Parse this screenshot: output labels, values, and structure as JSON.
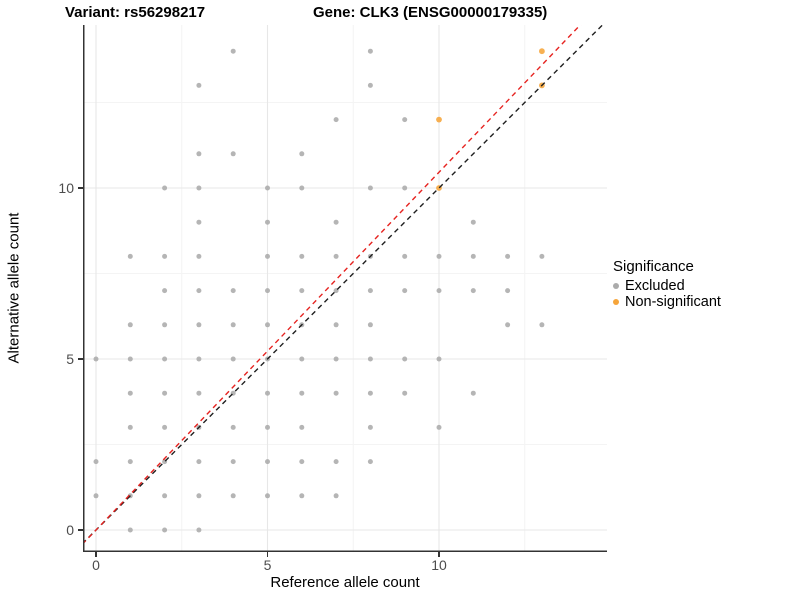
{
  "header": {
    "variant_title": "Variant: rs56298217",
    "gene_title": "Gene: CLK3 (ENSG00000179335)"
  },
  "legend": {
    "title": "Significance",
    "items": [
      {
        "label": "Excluded",
        "color": "#ABABAB"
      },
      {
        "label": "Non-significant",
        "color": "#F6A53A"
      }
    ]
  },
  "chart_data": {
    "type": "scatter",
    "title_left": "Variant: rs56298217",
    "title_right": "Gene: CLK3 (ENSG00000179335)",
    "xlabel": "Reference allele count",
    "ylabel": "Alternative allele count",
    "xlim": [
      -0.4,
      14.9
    ],
    "ylim": [
      -0.65,
      14.8
    ],
    "x_ticks": [
      0,
      5,
      10
    ],
    "y_ticks": [
      0,
      5,
      10
    ],
    "minor_gridlines_x": [
      2.5,
      7.5,
      12.5
    ],
    "minor_gridlines_y": [
      2.5,
      7.5,
      12.5
    ],
    "grid": "major+minor",
    "legend_position": "right",
    "series": [
      {
        "name": "Excluded",
        "color": "#ABABAB",
        "points": [
          [
            1,
            0
          ],
          [
            2,
            0
          ],
          [
            3,
            0
          ],
          [
            0,
            1
          ],
          [
            1,
            1
          ],
          [
            2,
            1
          ],
          [
            3,
            1
          ],
          [
            4,
            1
          ],
          [
            5,
            1
          ],
          [
            6,
            1
          ],
          [
            7,
            1
          ],
          [
            0,
            2
          ],
          [
            1,
            2
          ],
          [
            2,
            2
          ],
          [
            3,
            2
          ],
          [
            4,
            2
          ],
          [
            5,
            2
          ],
          [
            6,
            2
          ],
          [
            7,
            2
          ],
          [
            8,
            2
          ],
          [
            1,
            3
          ],
          [
            2,
            3
          ],
          [
            3,
            3
          ],
          [
            4,
            3
          ],
          [
            5,
            3
          ],
          [
            6,
            3
          ],
          [
            8,
            3
          ],
          [
            10,
            3
          ],
          [
            1,
            4
          ],
          [
            2,
            4
          ],
          [
            3,
            4
          ],
          [
            4,
            4
          ],
          [
            5,
            4
          ],
          [
            6,
            4
          ],
          [
            7,
            4
          ],
          [
            8,
            4
          ],
          [
            9,
            4
          ],
          [
            11,
            4
          ],
          [
            0,
            5
          ],
          [
            1,
            5
          ],
          [
            2,
            5
          ],
          [
            3,
            5
          ],
          [
            4,
            5
          ],
          [
            5,
            5
          ],
          [
            6,
            5
          ],
          [
            7,
            5
          ],
          [
            8,
            5
          ],
          [
            9,
            5
          ],
          [
            10,
            5
          ],
          [
            1,
            6
          ],
          [
            2,
            6
          ],
          [
            3,
            6
          ],
          [
            4,
            6
          ],
          [
            5,
            6
          ],
          [
            6,
            6
          ],
          [
            7,
            6
          ],
          [
            8,
            6
          ],
          [
            12,
            6
          ],
          [
            13,
            6
          ],
          [
            2,
            7
          ],
          [
            3,
            7
          ],
          [
            4,
            7
          ],
          [
            5,
            7
          ],
          [
            6,
            7
          ],
          [
            7,
            7
          ],
          [
            8,
            7
          ],
          [
            9,
            7
          ],
          [
            10,
            7
          ],
          [
            11,
            7
          ],
          [
            12,
            7
          ],
          [
            1,
            8
          ],
          [
            2,
            8
          ],
          [
            3,
            8
          ],
          [
            5,
            8
          ],
          [
            6,
            8
          ],
          [
            7,
            8
          ],
          [
            8,
            8
          ],
          [
            9,
            8
          ],
          [
            10,
            8
          ],
          [
            11,
            8
          ],
          [
            12,
            8
          ],
          [
            13,
            8
          ],
          [
            3,
            9
          ],
          [
            5,
            9
          ],
          [
            7,
            9
          ],
          [
            11,
            9
          ],
          [
            2,
            10
          ],
          [
            3,
            10
          ],
          [
            5,
            10
          ],
          [
            6,
            10
          ],
          [
            8,
            10
          ],
          [
            9,
            10
          ],
          [
            3,
            11
          ],
          [
            4,
            11
          ],
          [
            6,
            11
          ],
          [
            7,
            12
          ],
          [
            9,
            12
          ],
          [
            3,
            13
          ],
          [
            8,
            13
          ],
          [
            4,
            14
          ],
          [
            8,
            14
          ]
        ]
      },
      {
        "name": "Non-significant",
        "color": "#F6A53A",
        "points": [
          [
            10,
            10
          ],
          [
            10,
            12
          ],
          [
            13,
            13
          ],
          [
            13,
            14
          ]
        ]
      }
    ],
    "lines": [
      {
        "name": "identity-line",
        "style": "dashed",
        "color": "#1F1F1F",
        "slope": 1,
        "intercept": 0
      },
      {
        "name": "fit-line",
        "style": "dashed",
        "color": "#E62320",
        "slope": 1.046,
        "intercept": 0
      }
    ]
  }
}
